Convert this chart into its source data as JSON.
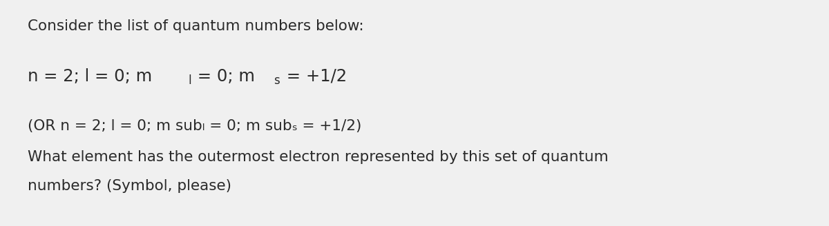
{
  "background_color": "#f0f0f0",
  "line1": "Consider the list of quantum numbers below:",
  "line3": "(OR n = 2; l = 0; m subₗ = 0; m subₛ = +1/2)",
  "line4": "What element has the outermost electron represented by this set of quantum",
  "line5": "numbers? (Symbol, please)",
  "font_size_line1": 15.5,
  "font_size_eq": 17.5,
  "font_size_sub": 12,
  "font_size_body": 15.5,
  "text_color": "#2a2a2a",
  "eq_prefix": "n = 2; l = 0; m",
  "eq_sub1": "l",
  "eq_mid": " = 0; m",
  "eq_sub2": "s",
  "eq_end": " = +1/2"
}
